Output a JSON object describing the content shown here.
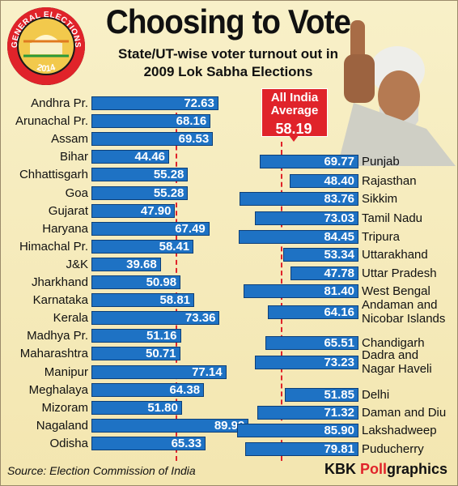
{
  "badge": {
    "top_text": "GENERAL ELECTIONS",
    "year": "2014"
  },
  "title": "Choosing to Vote",
  "subtitle_line1": "State/UT-wise voter turnout out in",
  "subtitle_line2": "2009 Lok Sabha Elections",
  "average": {
    "line1": "All India",
    "line2": "Average",
    "value": "58.19"
  },
  "source": "Source: Election Commission of India",
  "credit": {
    "prefix": "KBK ",
    "highlight": "Poll",
    "suffix": "graphics"
  },
  "colors": {
    "bar": "#1e72c4",
    "accent": "#e0232a",
    "background": "#f5ebbd"
  },
  "chart_data": [
    {
      "type": "bar",
      "orientation": "horizontal",
      "categories": [
        "Andhra Pr.",
        "Arunachal Pr.",
        "Assam",
        "Bihar",
        "Chhattisgarh",
        "Goa",
        "Gujarat",
        "Haryana",
        "Himachal Pr.",
        "J&K",
        "Jharkhand",
        "Karnataka",
        "Kerala",
        "Madhya Pr.",
        "Maharashtra",
        "Manipur",
        "Meghalaya",
        "Mizoram",
        "Nagaland",
        "Odisha"
      ],
      "values": [
        72.63,
        68.16,
        69.53,
        44.46,
        55.28,
        55.28,
        47.9,
        67.49,
        58.41,
        39.68,
        50.98,
        58.81,
        73.36,
        51.16,
        50.71,
        77.14,
        64.38,
        51.8,
        89.99,
        65.33
      ],
      "labels": [
        "72.63",
        "68.16",
        "69.53",
        "44.46",
        "55.28",
        "55.28",
        "47.90",
        "67.49",
        "58.41",
        "39.68",
        "50.98",
        "58.81",
        "73.36",
        "51.16",
        "50.71",
        "77.14",
        "64.38",
        "51.80",
        "89.99",
        "65.33"
      ],
      "reference_line": 58.19
    },
    {
      "type": "bar",
      "orientation": "horizontal",
      "direction": "right-to-left",
      "categories": [
        [
          "Punjab"
        ],
        [
          "Rajasthan"
        ],
        [
          "Sikkim"
        ],
        [
          "Tamil Nadu"
        ],
        [
          "Tripura"
        ],
        [
          "Uttarakhand"
        ],
        [
          "Uttar Pradesh"
        ],
        [
          "West Bengal"
        ],
        [
          "Andaman and",
          "Nicobar Islands"
        ],
        [
          "Chandigarh"
        ],
        [
          "Dadra and",
          "Nagar Haveli"
        ],
        [
          "Delhi"
        ],
        [
          "Daman and Diu"
        ],
        [
          "Lakshadweep"
        ],
        [
          "Puducherry"
        ]
      ],
      "values": [
        69.77,
        48.4,
        83.76,
        73.03,
        84.45,
        53.34,
        47.78,
        81.4,
        64.16,
        65.51,
        73.23,
        51.85,
        71.32,
        85.9,
        79.81
      ],
      "labels": [
        "69.77",
        "48.40",
        "83.76",
        "73.03",
        "84.45",
        "53.34",
        "47.78",
        "81.40",
        "64.16",
        "65.51",
        "73.23",
        "51.85",
        "71.32",
        "85.90",
        "79.81"
      ],
      "reference_line": 58.19
    }
  ]
}
